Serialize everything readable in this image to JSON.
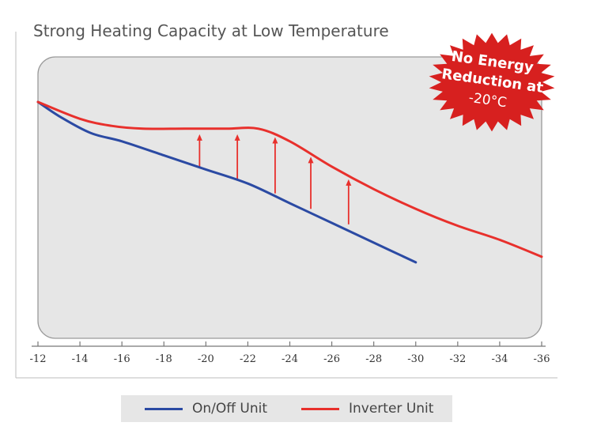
{
  "chart_data": {
    "type": "line",
    "title": "Strong Heating Capacity at Low Temperature",
    "xlabel": "",
    "ylabel": "",
    "xlim": [
      -12,
      -36
    ],
    "ylim": [
      0,
      100
    ],
    "x_ticks": [
      "-12",
      "-14",
      "-16",
      "-18",
      "-20",
      "-22",
      "-24",
      "-26",
      "-28",
      "-30",
      "-32",
      "-34",
      "-36"
    ],
    "grid": false,
    "legend_position": "bottom-center",
    "series": [
      {
        "name": "On/Off Unit",
        "color": "#2b4aa3",
        "points": [
          [
            -12,
            84
          ],
          [
            -13,
            79
          ],
          [
            -14.5,
            73
          ],
          [
            -16,
            70
          ],
          [
            -18,
            65
          ],
          [
            -20,
            60
          ],
          [
            -22,
            55
          ],
          [
            -24,
            48
          ],
          [
            -26,
            41
          ],
          [
            -28,
            34
          ],
          [
            -30,
            27
          ]
        ]
      },
      {
        "name": "Inverter Unit",
        "color": "#e8302c",
        "points": [
          [
            -12,
            84
          ],
          [
            -14,
            78
          ],
          [
            -15.5,
            75.5
          ],
          [
            -17,
            74.5
          ],
          [
            -19,
            74.5
          ],
          [
            -21,
            74.5
          ],
          [
            -22.5,
            74.5
          ],
          [
            -24,
            70
          ],
          [
            -26,
            61
          ],
          [
            -28,
            53
          ],
          [
            -30,
            46
          ],
          [
            -32,
            40
          ],
          [
            -34,
            35
          ],
          [
            -36,
            29
          ]
        ]
      }
    ],
    "arrows": [
      {
        "x": -19.7,
        "from": 60.5,
        "to": 72.5
      },
      {
        "x": -21.5,
        "from": 56.5,
        "to": 72.5
      },
      {
        "x": -23.3,
        "from": 51.5,
        "to": 71.5
      },
      {
        "x": -25.0,
        "from": 46.0,
        "to": 64.5
      },
      {
        "x": -26.8,
        "from": 40.5,
        "to": 56.5
      }
    ]
  },
  "badge": {
    "lines": [
      "No Energy",
      "Reduction at",
      "-20°C"
    ],
    "color": "#d7201f"
  },
  "legend": {
    "items": [
      {
        "label": "On/Off Unit",
        "color": "#2b4aa3"
      },
      {
        "label": "Inverter Unit",
        "color": "#e8302c"
      }
    ]
  }
}
